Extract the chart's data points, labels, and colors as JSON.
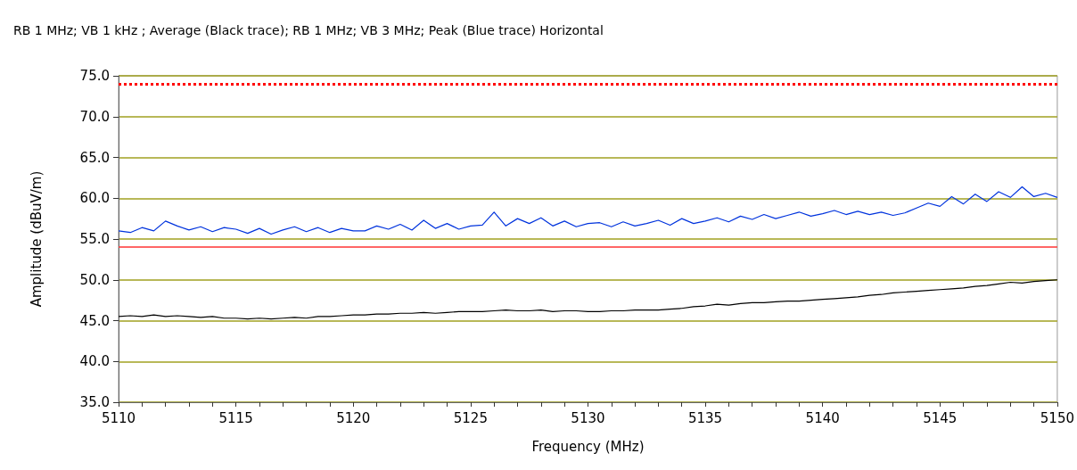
{
  "chart_data": {
    "type": "line",
    "title": "RB 1 MHz; VB 1 kHz ; Average (Black trace); RB 1 MHz; VB 3 MHz; Peak (Blue trace) Horizontal",
    "xlabel": "Frequency (MHz)",
    "ylabel": "Amplitude (dBuV/m)",
    "x": [
      5110,
      5110.5,
      5111,
      5111.5,
      5112,
      5112.5,
      5113,
      5113.5,
      5114,
      5114.5,
      5115,
      5115.5,
      5116,
      5116.5,
      5117,
      5117.5,
      5118,
      5118.5,
      5119,
      5119.5,
      5120,
      5120.5,
      5121,
      5121.5,
      5122,
      5122.5,
      5123,
      5123.5,
      5124,
      5124.5,
      5125,
      5125.5,
      5126,
      5126.5,
      5127,
      5127.5,
      5128,
      5128.5,
      5129,
      5129.5,
      5130,
      5130.5,
      5131,
      5131.5,
      5132,
      5132.5,
      5133,
      5133.5,
      5134,
      5134.5,
      5135,
      5135.5,
      5136,
      5136.5,
      5137,
      5137.5,
      5138,
      5138.5,
      5139,
      5139.5,
      5140,
      5140.5,
      5141,
      5141.5,
      5142,
      5142.5,
      5143,
      5143.5,
      5144,
      5144.5,
      5145,
      5145.5,
      5146,
      5146.5,
      5147,
      5147.5,
      5148,
      5148.5,
      5149,
      5149.5,
      5150
    ],
    "series": [
      {
        "color": "#0033dd",
        "values": [
          56.0,
          55.8,
          56.4,
          56.0,
          57.2,
          56.6,
          56.1,
          56.5,
          55.9,
          56.4,
          56.2,
          55.7,
          56.3,
          55.6,
          56.1,
          56.5,
          55.9,
          56.4,
          55.8,
          56.3,
          56.0,
          56.0,
          56.6,
          56.2,
          56.8,
          56.1,
          57.3,
          56.3,
          56.9,
          56.2,
          56.6,
          56.7,
          58.3,
          56.6,
          57.5,
          56.9,
          57.6,
          56.6,
          57.2,
          56.5,
          56.9,
          57.0,
          56.5,
          57.1,
          56.6,
          56.9,
          57.3,
          56.7,
          57.5,
          56.9,
          57.2,
          57.6,
          57.1,
          57.8,
          57.4,
          58.0,
          57.5,
          57.9,
          58.3,
          57.8,
          58.1,
          58.5,
          58.0,
          58.4,
          58.0,
          58.3,
          57.9,
          58.2,
          58.8,
          59.4,
          59.0,
          60.2,
          59.3,
          60.5,
          59.6,
          60.8,
          60.1,
          61.4,
          60.2,
          60.6,
          60.1
        ]
      },
      {
        "color": "#000000",
        "values": [
          45.5,
          45.6,
          45.5,
          45.7,
          45.5,
          45.6,
          45.5,
          45.4,
          45.5,
          45.3,
          45.3,
          45.2,
          45.3,
          45.2,
          45.3,
          45.4,
          45.3,
          45.5,
          45.5,
          45.6,
          45.7,
          45.7,
          45.8,
          45.8,
          45.9,
          45.9,
          46.0,
          45.9,
          46.0,
          46.1,
          46.1,
          46.1,
          46.2,
          46.3,
          46.2,
          46.2,
          46.3,
          46.1,
          46.2,
          46.2,
          46.1,
          46.1,
          46.2,
          46.2,
          46.3,
          46.3,
          46.3,
          46.4,
          46.5,
          46.7,
          46.8,
          47.0,
          46.9,
          47.1,
          47.2,
          47.2,
          47.3,
          47.4,
          47.4,
          47.5,
          47.6,
          47.7,
          47.8,
          47.9,
          48.1,
          48.2,
          48.4,
          48.5,
          48.6,
          48.7,
          48.8,
          48.9,
          49.0,
          49.2,
          49.3,
          49.5,
          49.7,
          49.6,
          49.8,
          49.9,
          50.0
        ]
      }
    ],
    "xlim": [
      5110,
      5150
    ],
    "xticks": [
      5110,
      {
        "value": 5111,
        "label": null
      },
      {
        "value": 5112,
        "label": null
      },
      {
        "value": 5113,
        "label": null
      },
      {
        "value": 5114,
        "label": null
      },
      5115,
      {
        "value": 5116,
        "label": null
      },
      {
        "value": 5117,
        "label": null
      },
      {
        "value": 5118,
        "label": null
      },
      {
        "value": 5119,
        "label": null
      },
      5120,
      {
        "value": 5121,
        "label": null
      },
      {
        "value": 5122,
        "label": null
      },
      {
        "value": 5123,
        "label": null
      },
      {
        "value": 5124,
        "label": null
      },
      5125,
      {
        "value": 5126,
        "label": null
      },
      {
        "value": 5127,
        "label": null
      },
      {
        "value": 5128,
        "label": null
      },
      {
        "value": 5129,
        "label": null
      },
      5130,
      {
        "value": 5131,
        "label": null
      },
      {
        "value": 5132,
        "label": null
      },
      {
        "value": 5133,
        "label": null
      },
      {
        "value": 5134,
        "label": null
      },
      5135,
      {
        "value": 5136,
        "label": null
      },
      {
        "value": 5137,
        "label": null
      },
      {
        "value": 5138,
        "label": null
      },
      {
        "value": 5139,
        "label": null
      },
      5140,
      {
        "value": 5141,
        "label": null
      },
      {
        "value": 5142,
        "label": null
      },
      {
        "value": 5143,
        "label": null
      },
      {
        "value": 5144,
        "label": null
      },
      5145,
      {
        "value": 5146,
        "label": null
      },
      {
        "value": 5147,
        "label": null
      },
      {
        "value": 5148,
        "label": null
      },
      {
        "value": 5149,
        "label": null
      },
      5150
    ],
    "ylim": [
      35,
      75
    ],
    "yticks": [
      {
        "value": 35,
        "label": "35.0"
      },
      {
        "value": 40,
        "label": "40.0"
      },
      {
        "value": 45,
        "label": "45.0"
      },
      {
        "value": 50,
        "label": "50.0"
      },
      {
        "value": 55,
        "label": "55.0"
      },
      {
        "value": 60,
        "label": "60.0"
      },
      {
        "value": 65,
        "label": "65.0"
      },
      {
        "value": 70,
        "label": "70.0"
      },
      {
        "value": 75,
        "label": "75.0"
      }
    ],
    "grid": "y",
    "marker": "none",
    "line_style": "solid",
    "ref_lines": [
      {
        "axis": "y",
        "value": 74,
        "color": "#ff0000",
        "line_style": "dotted"
      },
      {
        "axis": "y",
        "value": 54,
        "color": "#ff3333",
        "line_style": "solid"
      }
    ]
  }
}
